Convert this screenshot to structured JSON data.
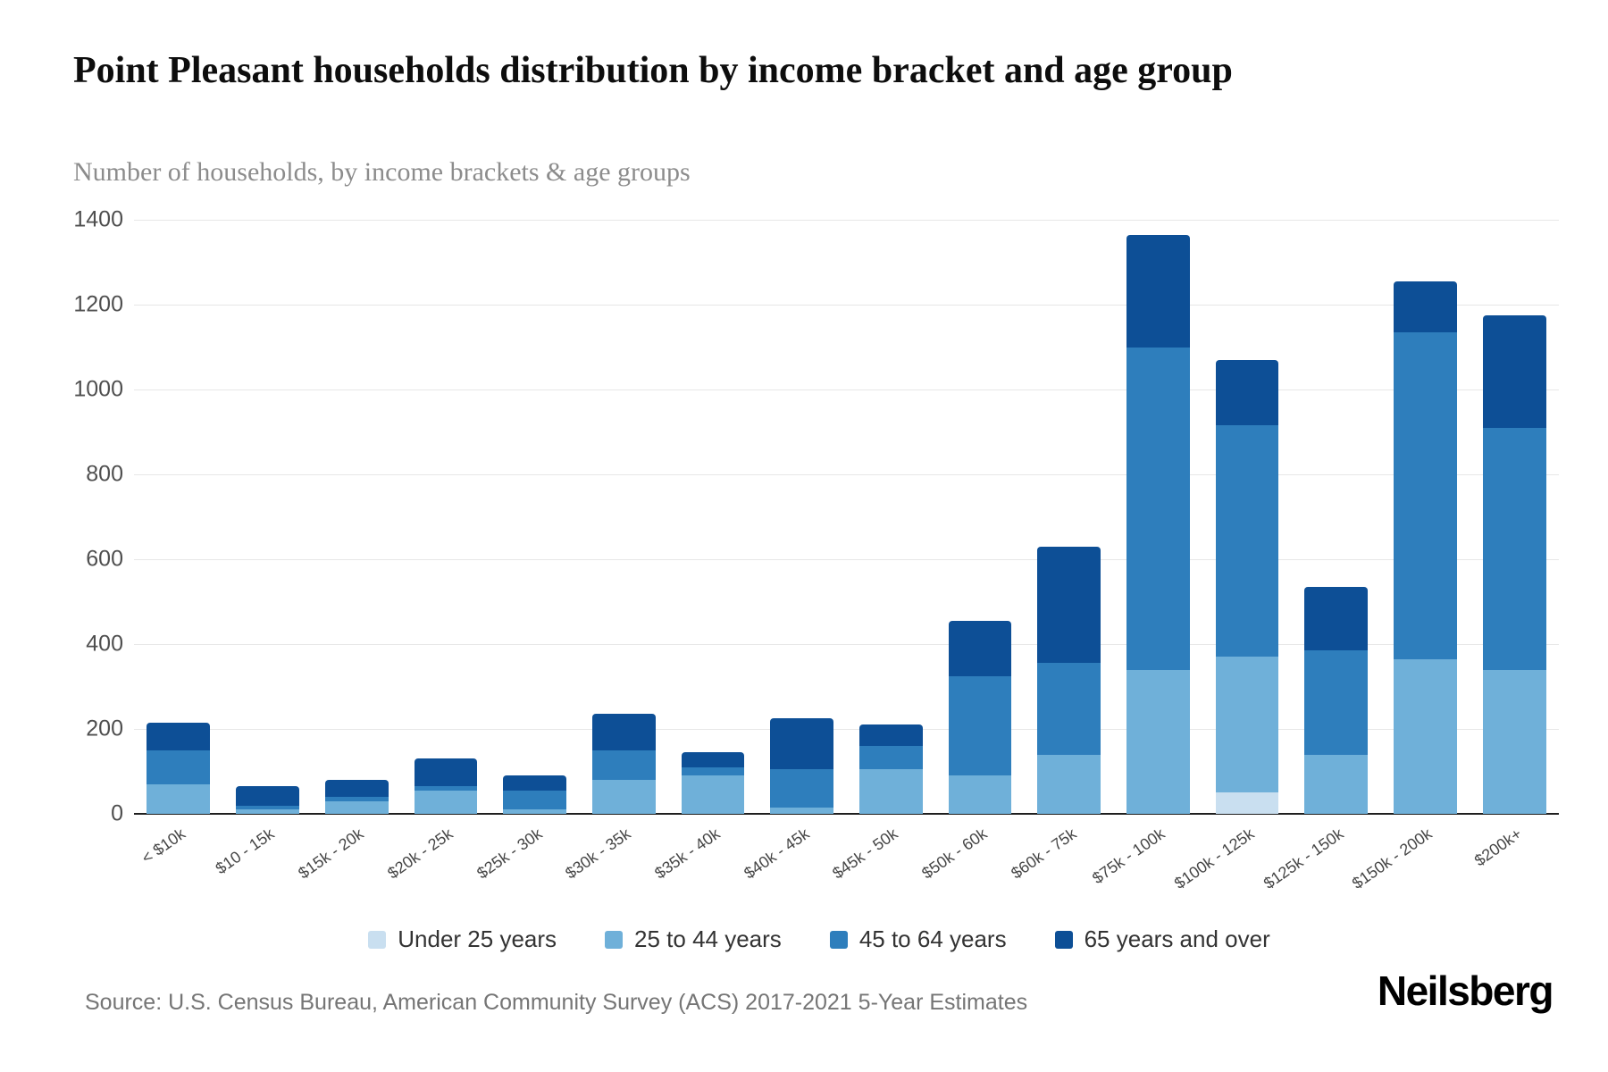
{
  "header": {
    "title": "Point Pleasant households distribution by income bracket and age group",
    "subtitle": "Number of households, by income brackets & age groups"
  },
  "chart_data": {
    "type": "bar",
    "stacked": true,
    "title": "Point Pleasant households distribution by income bracket and age group",
    "subtitle": "Number of households, by income brackets & age groups",
    "xlabel": "",
    "ylabel": "",
    "ylim": [
      0,
      1400
    ],
    "yticks": [
      0,
      200,
      400,
      600,
      800,
      1000,
      1200,
      1400
    ],
    "grid": true,
    "legend_position": "bottom",
    "categories": [
      "< $10k",
      "$10 - 15k",
      "$15k - 20k",
      "$20k - 25k",
      "$25k - 30k",
      "$30k - 35k",
      "$35k - 40k",
      "$40k - 45k",
      "$45k - 50k",
      "$50k - 60k",
      "$60k - 75k",
      "$75k - 100k",
      "$100k - 125k",
      "$125k - 150k",
      "$150k - 200k",
      "$200k+"
    ],
    "series": [
      {
        "name": "Under 25 years",
        "color": "#c9dff0",
        "values": [
          0,
          0,
          0,
          0,
          0,
          0,
          0,
          0,
          0,
          0,
          0,
          0,
          50,
          0,
          0,
          0
        ]
      },
      {
        "name": "25 to 44 years",
        "color": "#6fb0d9",
        "values": [
          70,
          10,
          30,
          55,
          10,
          80,
          90,
          15,
          105,
          90,
          140,
          340,
          320,
          140,
          365,
          340
        ]
      },
      {
        "name": "45 to 64 years",
        "color": "#2e7ebc",
        "values": [
          80,
          10,
          10,
          10,
          45,
          70,
          20,
          90,
          55,
          235,
          215,
          760,
          545,
          245,
          770,
          570
        ]
      },
      {
        "name": "65 years and over",
        "color": "#0d4f96",
        "values": [
          65,
          45,
          40,
          65,
          35,
          85,
          35,
          120,
          50,
          130,
          275,
          265,
          155,
          150,
          120,
          265
        ]
      }
    ],
    "totals": [
      215,
      65,
      80,
      130,
      90,
      235,
      145,
      225,
      210,
      455,
      630,
      1365,
      1070,
      535,
      1255,
      1175
    ]
  },
  "footer": {
    "source": "Source: U.S. Census Bureau, American Community Survey (ACS) 2017-2021 5-Year Estimates",
    "brand": "Neilsberg"
  }
}
